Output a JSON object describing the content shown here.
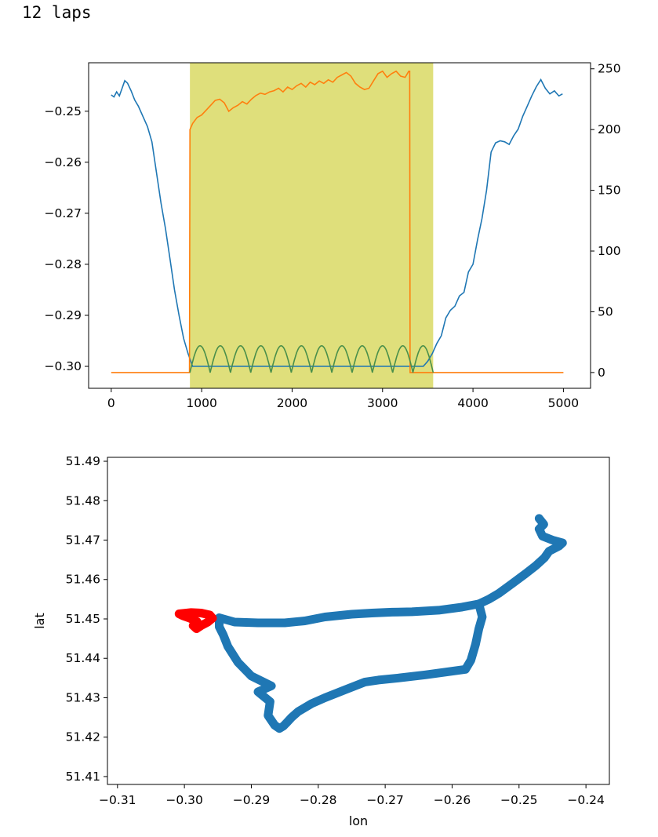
{
  "header": {
    "title": "12 laps"
  },
  "colors": {
    "blue": "#1f77b4",
    "orange": "#ff7f0e",
    "green": "#4a8f4a",
    "highlight": "#d4d44f",
    "red": "#ff0000"
  },
  "chart_data": [
    {
      "type": "line",
      "title": "",
      "xlabel": "",
      "ylabel": "",
      "xlim": [
        -250,
        5300
      ],
      "ylim_left": [
        -0.3043,
        -0.2405
      ],
      "ylim_right": [
        -13,
        255
      ],
      "xticks": [
        0,
        1000,
        2000,
        3000,
        4000,
        5000
      ],
      "xtick_labels": [
        "0",
        "1000",
        "2000",
        "3000",
        "4000",
        "5000"
      ],
      "yticks_left": [
        -0.25,
        -0.26,
        -0.27,
        -0.28,
        -0.29,
        -0.3
      ],
      "ytick_labels_left": [
        "−0.25",
        "−0.26",
        "−0.27",
        "−0.28",
        "−0.29",
        "−0.30"
      ],
      "yticks_right": [
        0,
        50,
        100,
        150,
        200,
        250
      ],
      "ytick_labels_right": [
        "0",
        "50",
        "100",
        "150",
        "200",
        "250"
      ],
      "highlight_span": [
        870,
        3560
      ],
      "grid": false,
      "series": [
        {
          "axis": "left",
          "color": "blue",
          "points": [
            [
              0,
              -0.2468
            ],
            [
              30,
              -0.2472
            ],
            [
              60,
              -0.2462
            ],
            [
              90,
              -0.247
            ],
            [
              120,
              -0.2455
            ],
            [
              150,
              -0.244
            ],
            [
              180,
              -0.2445
            ],
            [
              220,
              -0.246
            ],
            [
              260,
              -0.2478
            ],
            [
              300,
              -0.249
            ],
            [
              350,
              -0.251
            ],
            [
              400,
              -0.253
            ],
            [
              450,
              -0.256
            ],
            [
              500,
              -0.262
            ],
            [
              550,
              -0.268
            ],
            [
              600,
              -0.273
            ],
            [
              650,
              -0.279
            ],
            [
              700,
              -0.285
            ],
            [
              750,
              -0.29
            ],
            [
              800,
              -0.2945
            ],
            [
              850,
              -0.2975
            ],
            [
              900,
              -0.3
            ],
            [
              3450,
              -0.3
            ],
            [
              3500,
              -0.299
            ],
            [
              3550,
              -0.2975
            ],
            [
              3600,
              -0.2955
            ],
            [
              3650,
              -0.294
            ],
            [
              3700,
              -0.2905
            ],
            [
              3750,
              -0.289
            ],
            [
              3800,
              -0.2882
            ],
            [
              3850,
              -0.2862
            ],
            [
              3900,
              -0.2855
            ],
            [
              3950,
              -0.2815
            ],
            [
              4000,
              -0.28
            ],
            [
              4050,
              -0.2752
            ],
            [
              4100,
              -0.271
            ],
            [
              4150,
              -0.2655
            ],
            [
              4200,
              -0.258
            ],
            [
              4250,
              -0.2562
            ],
            [
              4300,
              -0.2558
            ],
            [
              4350,
              -0.256
            ],
            [
              4400,
              -0.2565
            ],
            [
              4450,
              -0.2548
            ],
            [
              4500,
              -0.2535
            ],
            [
              4550,
              -0.251
            ],
            [
              4600,
              -0.249
            ],
            [
              4650,
              -0.247
            ],
            [
              4700,
              -0.2452
            ],
            [
              4750,
              -0.2438
            ],
            [
              4800,
              -0.2455
            ],
            [
              4850,
              -0.2466
            ],
            [
              4900,
              -0.246
            ],
            [
              4950,
              -0.247
            ],
            [
              4990,
              -0.2466
            ]
          ]
        },
        {
          "axis": "right",
          "color": "orange",
          "points": [
            [
              0,
              0
            ],
            [
              865,
              0
            ],
            [
              870,
              200
            ],
            [
              900,
              205
            ],
            [
              950,
              210
            ],
            [
              1000,
              212
            ],
            [
              1050,
              216
            ],
            [
              1100,
              220
            ],
            [
              1150,
              224
            ],
            [
              1200,
              225
            ],
            [
              1250,
              222
            ],
            [
              1300,
              215
            ],
            [
              1350,
              218
            ],
            [
              1400,
              220
            ],
            [
              1450,
              223
            ],
            [
              1500,
              221
            ],
            [
              1550,
              225
            ],
            [
              1600,
              228
            ],
            [
              1650,
              230
            ],
            [
              1700,
              229
            ],
            [
              1750,
              231
            ],
            [
              1800,
              232
            ],
            [
              1850,
              234
            ],
            [
              1900,
              231
            ],
            [
              1950,
              235
            ],
            [
              2000,
              233
            ],
            [
              2050,
              236
            ],
            [
              2100,
              238
            ],
            [
              2150,
              235
            ],
            [
              2200,
              239
            ],
            [
              2250,
              237
            ],
            [
              2300,
              240
            ],
            [
              2350,
              238
            ],
            [
              2400,
              241
            ],
            [
              2450,
              239
            ],
            [
              2500,
              243
            ],
            [
              2550,
              245
            ],
            [
              2600,
              247
            ],
            [
              2650,
              244
            ],
            [
              2700,
              238
            ],
            [
              2750,
              235
            ],
            [
              2800,
              233
            ],
            [
              2850,
              234
            ],
            [
              2900,
              240
            ],
            [
              2950,
              246
            ],
            [
              3000,
              248
            ],
            [
              3050,
              243
            ],
            [
              3100,
              246
            ],
            [
              3150,
              248
            ],
            [
              3200,
              244
            ],
            [
              3250,
              243
            ],
            [
              3290,
              248
            ],
            [
              3300,
              248
            ],
            [
              3305,
              0
            ],
            [
              5000,
              0
            ]
          ]
        },
        {
          "axis": "right",
          "color": "green",
          "laps": 12,
          "x_range": [
            870,
            3560
          ],
          "min": 0,
          "max": 22
        }
      ]
    },
    {
      "type": "scatter",
      "title": "",
      "xlabel": "lon",
      "ylabel": "lat",
      "xlim": [
        -0.3115,
        -0.2365
      ],
      "ylim": [
        51.408,
        51.491
      ],
      "xticks": [
        -0.31,
        -0.3,
        -0.29,
        -0.28,
        -0.27,
        -0.26,
        -0.25,
        -0.24
      ],
      "xtick_labels": [
        "−0.31",
        "−0.30",
        "−0.29",
        "−0.28",
        "−0.27",
        "−0.26",
        "−0.25",
        "−0.24"
      ],
      "yticks": [
        51.41,
        51.42,
        51.43,
        51.44,
        51.45,
        51.46,
        51.47,
        51.48,
        51.49
      ],
      "ytick_labels": [
        "51.41",
        "51.42",
        "51.43",
        "51.44",
        "51.45",
        "51.46",
        "51.47",
        "51.48",
        "51.49"
      ],
      "grid": false,
      "series": [
        {
          "color": "blue",
          "points": [
            [
              -0.2948,
              51.4503
            ],
            [
              -0.2925,
              51.4492
            ],
            [
              -0.289,
              51.449
            ],
            [
              -0.285,
              51.449
            ],
            [
              -0.282,
              51.4495
            ],
            [
              -0.279,
              51.4505
            ],
            [
              -0.275,
              51.4512
            ],
            [
              -0.272,
              51.4515
            ],
            [
              -0.269,
              51.4517
            ],
            [
              -0.266,
              51.4518
            ],
            [
              -0.262,
              51.4522
            ],
            [
              -0.2585,
              51.453
            ],
            [
              -0.256,
              51.4538
            ],
            [
              -0.2555,
              51.4505
            ],
            [
              -0.256,
              51.4475
            ],
            [
              -0.2565,
              51.4435
            ],
            [
              -0.2572,
              51.4395
            ],
            [
              -0.258,
              51.4372
            ],
            [
              -0.261,
              51.4365
            ],
            [
              -0.264,
              51.4358
            ],
            [
              -0.268,
              51.435
            ],
            [
              -0.271,
              51.4345
            ],
            [
              -0.273,
              51.434
            ],
            [
              -0.276,
              51.432
            ],
            [
              -0.279,
              51.43
            ],
            [
              -0.281,
              51.4285
            ],
            [
              -0.283,
              51.4265
            ],
            [
              -0.284,
              51.425
            ],
            [
              -0.2848,
              51.4235
            ],
            [
              -0.2852,
              51.4228
            ],
            [
              -0.2858,
              51.4222
            ],
            [
              -0.2865,
              51.423
            ],
            [
              -0.2875,
              51.4255
            ],
            [
              -0.2872,
              51.429
            ],
            [
              -0.289,
              51.4315
            ],
            [
              -0.287,
              51.433
            ],
            [
              -0.29,
              51.4355
            ],
            [
              -0.292,
              51.439
            ],
            [
              -0.2935,
              51.443
            ],
            [
              -0.2942,
              51.446
            ],
            [
              -0.2948,
              51.448
            ],
            [
              -0.2948,
              51.4503
            ]
          ]
        },
        {
          "color": "blue",
          "points": [
            [
              -0.256,
              51.4538
            ],
            [
              -0.2545,
              51.455
            ],
            [
              -0.253,
              51.4565
            ],
            [
              -0.251,
              51.459
            ],
            [
              -0.249,
              51.4615
            ],
            [
              -0.2475,
              51.4635
            ],
            [
              -0.2462,
              51.4655
            ],
            [
              -0.2455,
              51.4672
            ],
            [
              -0.244,
              51.4685
            ],
            [
              -0.2435,
              51.4693
            ],
            [
              -0.245,
              51.47
            ],
            [
              -0.2465,
              51.471
            ],
            [
              -0.247,
              51.4728
            ],
            [
              -0.2463,
              51.474
            ],
            [
              -0.247,
              51.4755
            ]
          ]
        },
        {
          "color": "red",
          "points": [
            [
              -0.3008,
              51.4513
            ],
            [
              -0.299,
              51.4516
            ],
            [
              -0.2975,
              51.4515
            ],
            [
              -0.2962,
              51.451
            ],
            [
              -0.2958,
              51.4502
            ],
            [
              -0.2965,
              51.4492
            ],
            [
              -0.2975,
              51.4483
            ],
            [
              -0.2982,
              51.4475
            ],
            [
              -0.2987,
              51.4483
            ],
            [
              -0.2981,
              51.4493
            ],
            [
              -0.2992,
              51.4502
            ],
            [
              -0.3002,
              51.4508
            ],
            [
              -0.3008,
              51.4513
            ]
          ]
        }
      ]
    }
  ]
}
